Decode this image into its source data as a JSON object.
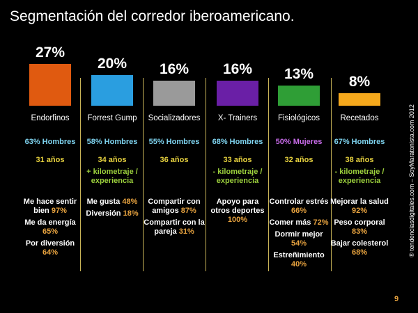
{
  "title": "Segmentación del corredor iberoamericano.",
  "side_note": "® tendenciasdigitales.com – SoyMaratonista.com 2012",
  "page_number": "9",
  "colors": {
    "gender_male": "#7fd4f0",
    "gender_female": "#c76be8",
    "age": "#e8d33f",
    "extra": "#9bcf3c",
    "value": "#e8a33f",
    "separator": "#c9b458"
  },
  "chart_data": {
    "type": "bar",
    "title": "Segmentación del corredor iberoamericano.",
    "categories": [
      "Endorfinos",
      "Forrest Gump",
      "Socializadores",
      "X- Trainers",
      "Fisiológicos",
      "Recetados"
    ],
    "values": [
      27,
      20,
      16,
      16,
      13,
      8
    ],
    "value_labels": [
      "27%",
      "20%",
      "16%",
      "16%",
      "13%",
      "8%"
    ],
    "bar_colors": [
      "#e05a10",
      "#2a9ee0",
      "#9a9a9a",
      "#6a1fa6",
      "#2f9e36",
      "#f5a81c"
    ]
  },
  "segments": [
    {
      "gender": "63% Hombres",
      "gender_color": "#7fd4f0",
      "age": "31 años",
      "extra": "",
      "motivations": [
        {
          "text": "Me hace sentir bien",
          "value": "97%"
        },
        {
          "text": "Me da energía",
          "value": "65%"
        },
        {
          "text": "Por diversión",
          "value": "64%"
        }
      ]
    },
    {
      "gender": "58% Hombres",
      "gender_color": "#7fd4f0",
      "age": "34 años",
      "extra": "+ kilometraje / experiencia",
      "motivations": [
        {
          "text": "Me gusta",
          "value": "48%"
        },
        {
          "text": "Diversión",
          "value": "18%"
        }
      ]
    },
    {
      "gender": "55% Hombres",
      "gender_color": "#7fd4f0",
      "age": "36 años",
      "extra": "",
      "motivations": [
        {
          "text": "Compartir con amigos",
          "value": "87%"
        },
        {
          "text": "Compartir con la pareja",
          "value": "31%"
        }
      ]
    },
    {
      "gender": "68% Hombres",
      "gender_color": "#7fd4f0",
      "age": "33 años",
      "extra": "- kilometraje / experiencia",
      "motivations": [
        {
          "text": "Apoyo para otros deportes",
          "value": "100%"
        }
      ]
    },
    {
      "gender": "50% Mujeres",
      "gender_color": "#c76be8",
      "age": "32 años",
      "extra": "",
      "motivations": [
        {
          "text": "Controlar estrés",
          "value": "66%"
        },
        {
          "text": "Comer más",
          "value": "72%"
        },
        {
          "text": "Dormir mejor",
          "value": "54%"
        },
        {
          "text": "Estreñimiento",
          "value": "40%"
        }
      ]
    },
    {
      "gender": "67% Hombres",
      "gender_color": "#7fd4f0",
      "age": "38 años",
      "extra": "- kilometraje / experiencia",
      "motivations": [
        {
          "text": "Mejorar la salud",
          "value": "92%"
        },
        {
          "text": "Peso corporal",
          "value": "83%"
        },
        {
          "text": "Bajar colesterol",
          "value": "68%"
        }
      ]
    }
  ]
}
